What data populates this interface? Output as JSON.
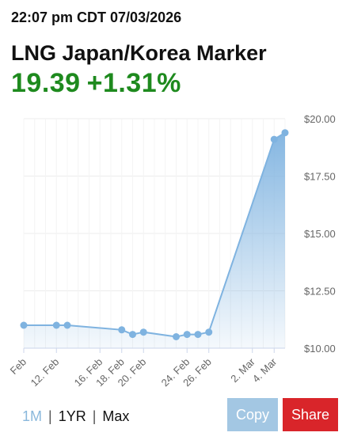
{
  "header": {
    "timestamp": "22:07 pm CDT 07/03/2026",
    "title": "LNG Japan/Korea Marker",
    "price": "19.39",
    "change": "+1.31%"
  },
  "colors": {
    "price_green": "#1e8a1e",
    "line_blue": "#7fb3e0",
    "copy_bg": "#a3c7e3",
    "share_bg": "#d9252a"
  },
  "range_selector": {
    "options": [
      "1M",
      "1YR",
      "Max"
    ],
    "active": "1M",
    "separator": "|"
  },
  "buttons": {
    "copy_label": "Copy",
    "share_label": "Share"
  },
  "chart_data": {
    "type": "area",
    "x_tick_labels": [
      "Feb",
      "12. Feb",
      "16. Feb",
      "18. Feb",
      "20. Feb",
      "24. Feb",
      "26. Feb",
      "2. Mar",
      "4. Mar"
    ],
    "y_tick_labels": [
      "$20.00",
      "$17.50",
      "$15.00",
      "$12.50",
      "$10.00"
    ],
    "ylim": [
      10,
      20
    ],
    "points": [
      {
        "x": "2026-02-09",
        "y": 11.0
      },
      {
        "x": "2026-02-12",
        "y": 11.0
      },
      {
        "x": "2026-02-13",
        "y": 11.0
      },
      {
        "x": "2026-02-18",
        "y": 10.8
      },
      {
        "x": "2026-02-19",
        "y": 10.6
      },
      {
        "x": "2026-02-20",
        "y": 10.7
      },
      {
        "x": "2026-02-23",
        "y": 10.5
      },
      {
        "x": "2026-02-24",
        "y": 10.6
      },
      {
        "x": "2026-02-25",
        "y": 10.6
      },
      {
        "x": "2026-02-26",
        "y": 10.7
      },
      {
        "x": "2026-03-04",
        "y": 19.1
      },
      {
        "x": "2026-03-05",
        "y": 19.39
      }
    ],
    "grid": true,
    "y_axis_position": "right"
  }
}
